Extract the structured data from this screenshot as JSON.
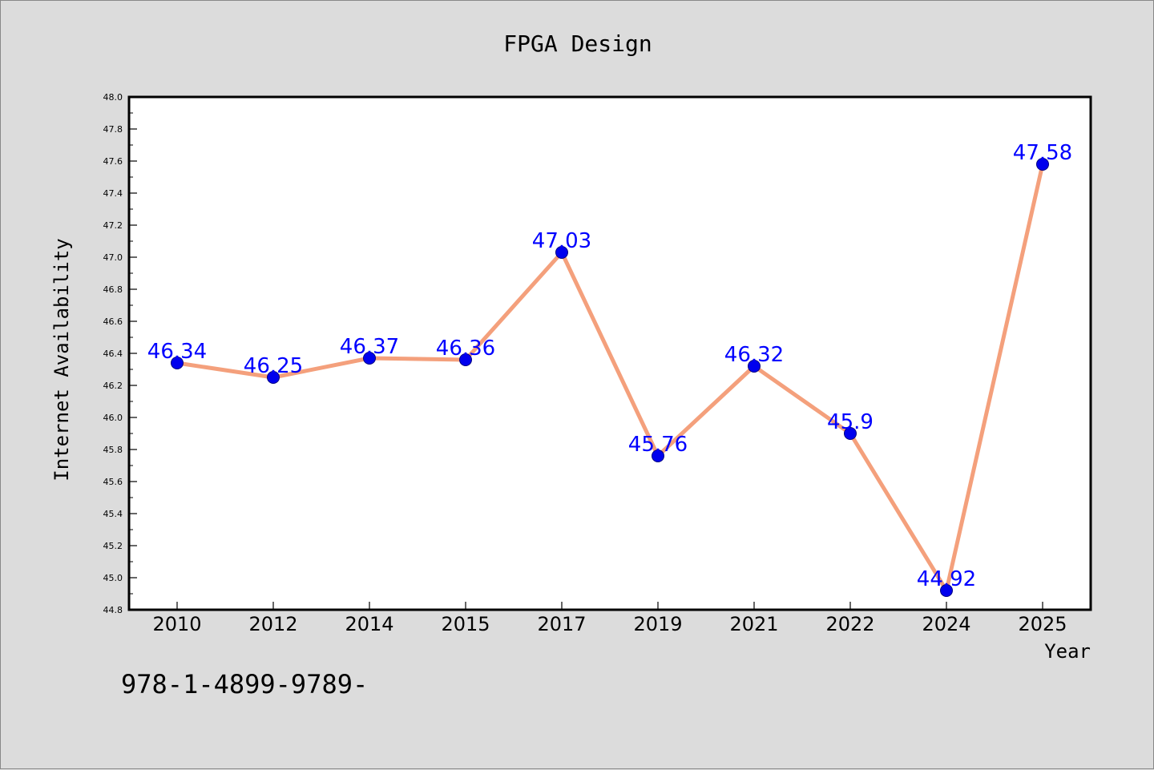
{
  "chart_data": {
    "type": "line",
    "title": "FPGA Design",
    "xlabel": "Year",
    "ylabel": "Internet Availability",
    "categories": [
      "2010",
      "2012",
      "2014",
      "2015",
      "2017",
      "2019",
      "2021",
      "2022",
      "2024",
      "2025"
    ],
    "series": [
      {
        "values": [
          46.34,
          46.25,
          46.37,
          46.36,
          47.03,
          45.76,
          46.32,
          45.9,
          44.92,
          47.58
        ],
        "data_labels": [
          "46.34",
          "46.25",
          "46.37",
          "46.36",
          "47.03",
          "45.76",
          "46.32",
          "45.9",
          "44.92",
          "47.58"
        ]
      }
    ],
    "ylim": [
      44.8,
      48.0
    ],
    "y_ticks": [
      "44.8",
      "45.0",
      "45.2",
      "45.4",
      "45.6",
      "45.8",
      "46.0",
      "46.2",
      "46.4",
      "46.6",
      "46.8",
      "47.0",
      "47.2",
      "47.4",
      "47.6",
      "47.8",
      "48.0"
    ],
    "grid": false,
    "legend": "none",
    "colors": {
      "line": "#f4a07c",
      "marker": "#0000ee",
      "marker_edge": "#000080",
      "data_label": "#0000ff",
      "plot_background": "#ffffff",
      "figure_background": "#dcdcdc"
    }
  },
  "footer": {
    "isbn": "978-1-4899-9789-"
  }
}
